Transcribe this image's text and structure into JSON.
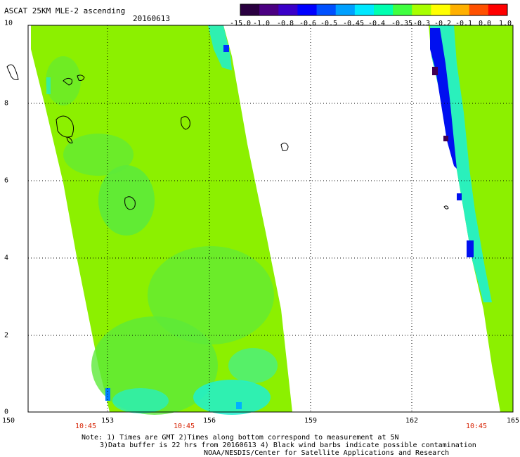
{
  "header": {
    "title": "ASCAT 25KM MLE-2 ascending",
    "date": "20160613"
  },
  "colorbar": {
    "labels": [
      "-15.0",
      "-1.0",
      "-0.8",
      "-0.6",
      "-0.5",
      "-0.45",
      "-0.4",
      "-0.35",
      "-0.3",
      "-0.2",
      "-0.1",
      "0.0",
      "1.0"
    ],
    "colors": [
      "#2a0040",
      "#4b0082",
      "#3a00c8",
      "#0000ff",
      "#0050ff",
      "#00a0ff",
      "#00e8ff",
      "#00ffb0",
      "#40ff40",
      "#a8ff00",
      "#ffff00",
      "#ffb000",
      "#ff5000",
      "#ff0000"
    ]
  },
  "axes": {
    "x_ticks": [
      "150",
      "153",
      "156",
      "159",
      "162",
      "165"
    ],
    "y_ticks": [
      "0",
      "2",
      "4",
      "6",
      "8",
      "10"
    ],
    "times": [
      "10:45",
      "10:45",
      "10:45"
    ]
  },
  "notes": {
    "line1": "Note: 1) Times are GMT 2)Times along bottom correspond to measurement at 5N",
    "line2": "3)Data buffer is 22 hrs from 20160613 4) Black wind barbs indicate possible contamination",
    "line3": "NOAA/NESDIS/Center for Satellite Applications and Research"
  },
  "map_colors": {
    "bg_green": "#8cf000",
    "mid_green": "#5cea3a",
    "cyan": "#1ff0d0",
    "blue": "#0010f0",
    "purple": "#400050"
  }
}
